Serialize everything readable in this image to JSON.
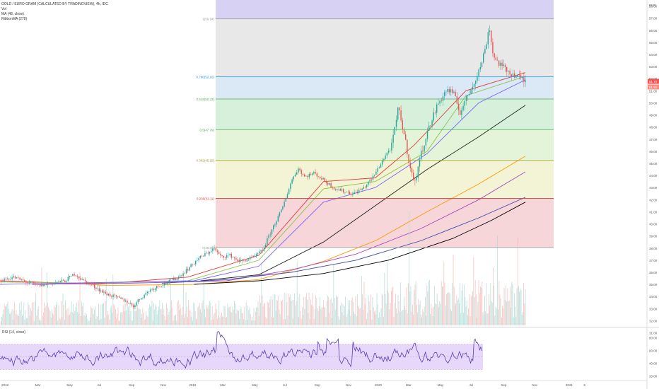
{
  "header": {
    "symbol": "GOLD / EURO GRAM (CALCULATED BY TRADINGVIEW), 4h, IDC",
    "vol": "Vol",
    "ma": "MA (48, close)",
    "ribbon": "RibbonMA (278)"
  },
  "currency": "EUR",
  "rsi_label": "RSI (14, close)",
  "colors": {
    "up": "#26a69a",
    "down": "#ef5350",
    "rsi": "#5b3bb5",
    "rsi_band": "#e6d7fb",
    "price_tag": "#ef5350"
  },
  "chart_data": {
    "type": "candlestick",
    "title": "GOLD / EURO GRAM (CALCULATED BY TRADINGVIEW), 4h, IDC",
    "ylim": [
      31.5,
      58.5
    ],
    "price_ticks": [
      "58.00",
      "57.00",
      "56.00",
      "55.00",
      "54.00",
      "53.00",
      "52.00",
      "51.00",
      "50.00",
      "49.00",
      "48.00",
      "47.00",
      "46.00",
      "45.00",
      "44.00",
      "43.00",
      "42.00",
      "41.00",
      "40.00",
      "39.00",
      "38.00",
      "37.00",
      "36.00",
      "35.00",
      "34.00",
      "33.00",
      "32.00",
      "31.00"
    ],
    "current_price": "51.75",
    "current_price_2": "51.92",
    "time_ticks": [
      {
        "label": "2018",
        "x": 0.0
      },
      {
        "label": "Mar",
        "x": 0.052
      },
      {
        "label": "May",
        "x": 0.101
      },
      {
        "label": "Jul",
        "x": 0.148
      },
      {
        "label": "Sep",
        "x": 0.197
      },
      {
        "label": "Nov",
        "x": 0.246
      },
      {
        "label": "2019",
        "x": 0.29
      },
      {
        "label": "Mar",
        "x": 0.338
      },
      {
        "label": "May",
        "x": 0.387
      },
      {
        "label": "Jul",
        "x": 0.435
      },
      {
        "label": "Sep",
        "x": 0.484
      },
      {
        "label": "Nov",
        "x": 0.532
      },
      {
        "label": "2020",
        "x": 0.577
      },
      {
        "label": "Mar",
        "x": 0.625
      },
      {
        "label": "May",
        "x": 0.674
      },
      {
        "label": "Jul",
        "x": 0.723
      },
      {
        "label": "Sep",
        "x": 0.772
      },
      {
        "label": "Nov",
        "x": 0.82
      },
      {
        "label": "2021",
        "x": 0.872
      },
      {
        "label": "6",
        "x": 0.9
      }
    ],
    "fib_levels": [
      {
        "label": "1(56.94)",
        "value": 56.94,
        "color": "#9e9e9e"
      },
      {
        "label": "0.786(52.16)",
        "value": 52.16,
        "color": "#2196f3"
      },
      {
        "label": "0.618(50.32)",
        "value": 50.32,
        "color": "#4caf50"
      },
      {
        "label": "0.5(47.79)",
        "value": 47.79,
        "color": "#4caf50"
      },
      {
        "label": "0.382(45.25)",
        "value": 45.25,
        "color": "#9e9d24"
      },
      {
        "label": "0.236(42.11)",
        "value": 42.11,
        "color": "#e53935"
      },
      {
        "label": "0(38.05)",
        "value": 38.05,
        "color": "#9e9e9e"
      }
    ],
    "fib_bands": [
      {
        "from": 58.5,
        "to": 56.94,
        "color": "#d7d2f3"
      },
      {
        "from": 56.94,
        "to": 52.16,
        "color": "#e8e8e8"
      },
      {
        "from": 52.16,
        "to": 50.32,
        "color": "#dbe9f7"
      },
      {
        "from": 50.32,
        "to": 47.79,
        "color": "#d6f0dc"
      },
      {
        "from": 47.79,
        "to": 45.25,
        "color": "#e4f4d8"
      },
      {
        "from": 45.25,
        "to": 42.11,
        "color": "#f3f4d5"
      },
      {
        "from": 42.11,
        "to": 38.05,
        "color": "#f6d6d8"
      }
    ],
    "price_path": [
      [
        0.0,
        35.3
      ],
      [
        0.02,
        35.6
      ],
      [
        0.04,
        35.2
      ],
      [
        0.06,
        34.9
      ],
      [
        0.08,
        35.1
      ],
      [
        0.1,
        35.3
      ],
      [
        0.115,
        35.9
      ],
      [
        0.125,
        35.4
      ],
      [
        0.14,
        35.0
      ],
      [
        0.16,
        34.3
      ],
      [
        0.18,
        33.9
      ],
      [
        0.195,
        33.6
      ],
      [
        0.205,
        33.2
      ],
      [
        0.215,
        33.8
      ],
      [
        0.23,
        34.5
      ],
      [
        0.245,
        34.9
      ],
      [
        0.26,
        35.2
      ],
      [
        0.275,
        35.6
      ],
      [
        0.29,
        36.3
      ],
      [
        0.305,
        37.1
      ],
      [
        0.32,
        37.6
      ],
      [
        0.33,
        38.0
      ],
      [
        0.34,
        37.3
      ],
      [
        0.355,
        37.4
      ],
      [
        0.37,
        36.9
      ],
      [
        0.39,
        37.2
      ],
      [
        0.405,
        37.8
      ],
      [
        0.42,
        39.6
      ],
      [
        0.435,
        41.2
      ],
      [
        0.45,
        43.6
      ],
      [
        0.46,
        44.6
      ],
      [
        0.47,
        43.9
      ],
      [
        0.485,
        44.2
      ],
      [
        0.5,
        43.6
      ],
      [
        0.515,
        43.0
      ],
      [
        0.53,
        42.7
      ],
      [
        0.545,
        42.5
      ],
      [
        0.56,
        42.9
      ],
      [
        0.575,
        43.8
      ],
      [
        0.59,
        45.2
      ],
      [
        0.605,
        46.5
      ],
      [
        0.615,
        49.6
      ],
      [
        0.625,
        47.1
      ],
      [
        0.632,
        45.0
      ],
      [
        0.64,
        43.2
      ],
      [
        0.648,
        45.4
      ],
      [
        0.66,
        47.6
      ],
      [
        0.675,
        49.8
      ],
      [
        0.69,
        51.1
      ],
      [
        0.7,
        50.8
      ],
      [
        0.71,
        49.2
      ],
      [
        0.725,
        50.9
      ],
      [
        0.74,
        52.7
      ],
      [
        0.75,
        54.6
      ],
      [
        0.755,
        56.4
      ],
      [
        0.762,
        53.8
      ],
      [
        0.775,
        53.0
      ],
      [
        0.79,
        52.4
      ],
      [
        0.805,
        52.0
      ],
      [
        0.812,
        51.75
      ]
    ],
    "ma_lines": [
      {
        "color": "#e53935",
        "pts": [
          [
            0.0,
            35.3
          ],
          [
            0.15,
            35.0
          ],
          [
            0.29,
            35.6
          ],
          [
            0.4,
            37.4
          ],
          [
            0.5,
            43.5
          ],
          [
            0.58,
            43.8
          ],
          [
            0.64,
            46.5
          ],
          [
            0.72,
            51.0
          ],
          [
            0.812,
            52.5
          ]
        ]
      },
      {
        "color": "#8bc34a",
        "pts": [
          [
            0.0,
            35.2
          ],
          [
            0.15,
            35.1
          ],
          [
            0.29,
            35.3
          ],
          [
            0.4,
            37.0
          ],
          [
            0.5,
            42.9
          ],
          [
            0.58,
            43.5
          ],
          [
            0.66,
            46.0
          ],
          [
            0.72,
            50.6
          ],
          [
            0.812,
            52.2
          ]
        ]
      },
      {
        "color": "#7b61ff",
        "pts": [
          [
            0.0,
            35.0
          ],
          [
            0.2,
            35.2
          ],
          [
            0.3,
            35.3
          ],
          [
            0.4,
            36.5
          ],
          [
            0.5,
            41.8
          ],
          [
            0.58,
            43.0
          ],
          [
            0.66,
            45.8
          ],
          [
            0.74,
            50.0
          ],
          [
            0.812,
            51.9
          ]
        ]
      },
      {
        "color": "#212121",
        "pts": [
          [
            0.31,
            35.3
          ],
          [
            0.4,
            35.8
          ],
          [
            0.5,
            38.5
          ],
          [
            0.58,
            41.5
          ],
          [
            0.66,
            44.5
          ],
          [
            0.74,
            47.2
          ],
          [
            0.812,
            49.8
          ]
        ]
      },
      {
        "color": "#ff9800",
        "pts": [
          [
            0.15,
            34.9
          ],
          [
            0.3,
            35.0
          ],
          [
            0.4,
            35.4
          ],
          [
            0.5,
            36.9
          ],
          [
            0.58,
            38.6
          ],
          [
            0.66,
            41.0
          ],
          [
            0.74,
            43.3
          ],
          [
            0.812,
            45.6
          ]
        ]
      },
      {
        "color": "#ab47bc",
        "pts": [
          [
            0.05,
            35.0
          ],
          [
            0.2,
            35.1
          ],
          [
            0.35,
            35.3
          ],
          [
            0.45,
            36.2
          ],
          [
            0.55,
            37.5
          ],
          [
            0.65,
            39.6
          ],
          [
            0.74,
            42.0
          ],
          [
            0.812,
            44.3
          ]
        ]
      },
      {
        "color": "#3949ab",
        "pts": [
          [
            0.25,
            35.1
          ],
          [
            0.35,
            35.4
          ],
          [
            0.45,
            36.0
          ],
          [
            0.55,
            37.0
          ],
          [
            0.65,
            38.6
          ],
          [
            0.74,
            40.5
          ],
          [
            0.812,
            42.2
          ]
        ]
      },
      {
        "color": "#000000",
        "pts": [
          [
            0.3,
            35.0
          ],
          [
            0.4,
            35.3
          ],
          [
            0.5,
            35.9
          ],
          [
            0.6,
            37.0
          ],
          [
            0.7,
            38.8
          ],
          [
            0.76,
            40.3
          ],
          [
            0.812,
            41.8
          ]
        ]
      }
    ],
    "rsi": {
      "ticks": [
        "80.00",
        "60.00",
        "40.00",
        "20.00"
      ],
      "ylim": [
        15,
        95
      ],
      "upper": 70,
      "lower": 30,
      "mid": 50
    }
  }
}
